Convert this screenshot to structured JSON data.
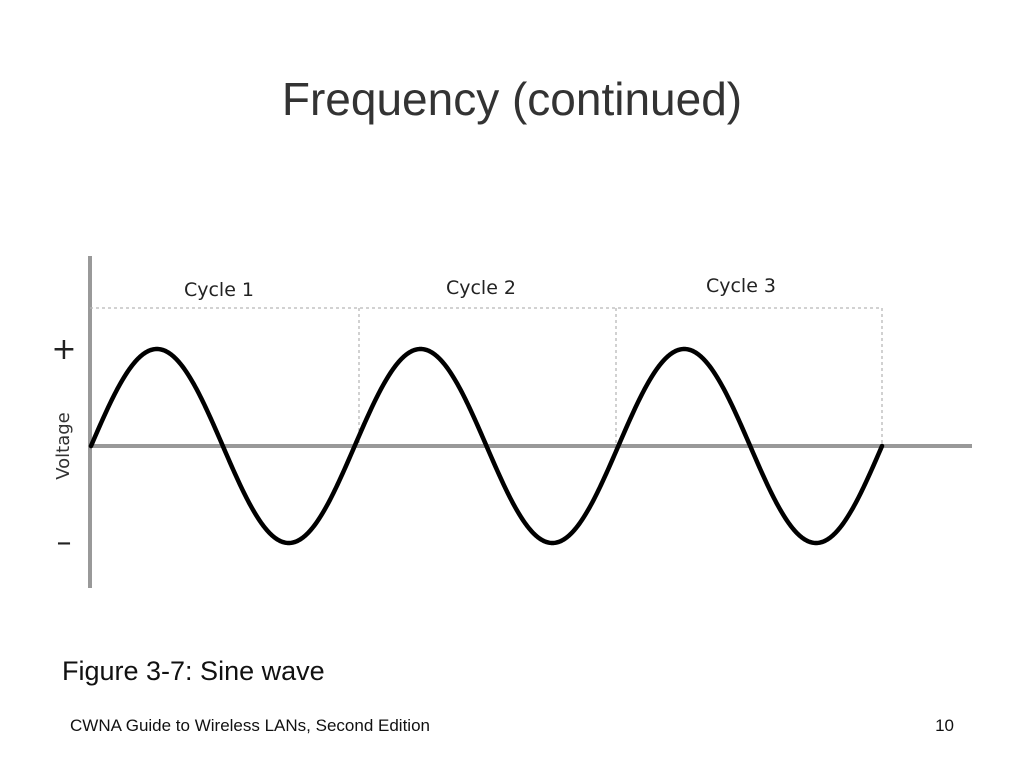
{
  "slide": {
    "title": "Frequency (continued)",
    "caption": "Figure 3-7: Sine wave",
    "footer": "CWNA Guide to Wireless LANs, Second Edition",
    "page_number": "10"
  },
  "diagram": {
    "axis_label": "Voltage",
    "plus_label": "+",
    "minus_label": "–",
    "cycles": [
      {
        "label": "Cycle 1"
      },
      {
        "label": "Cycle 2"
      },
      {
        "label": "Cycle 3"
      }
    ],
    "wave_color": "#000000",
    "axis_color": "#999999",
    "guide_color": "#b8b8b8"
  }
}
